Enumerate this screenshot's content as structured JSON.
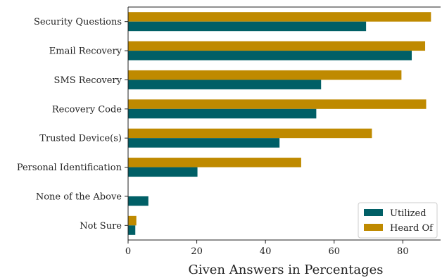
{
  "chart_data": {
    "type": "bar",
    "orientation": "horizontal",
    "categories": [
      "Security Questions",
      "Email Recovery",
      "SMS Recovery",
      "Recovery Code",
      "Trusted Device(s)",
      "Personal Identification",
      "None of the Above",
      "Not Sure"
    ],
    "series": [
      {
        "name": "Heard Of",
        "color": "#bf8a00",
        "values": [
          88.2,
          86.5,
          79.6,
          86.8,
          71.0,
          50.4,
          0,
          2.4
        ]
      },
      {
        "name": "Utilized",
        "color": "#005f66",
        "values": [
          69.3,
          82.6,
          56.2,
          54.8,
          44.1,
          20.2,
          5.9,
          2.1
        ]
      }
    ],
    "legend_order": [
      "Utilized",
      "Heard Of"
    ],
    "legend_position": "bottom-right",
    "xlabel": "Given Answers in Percentages",
    "ylabel": "",
    "xlim": [
      0,
      91
    ],
    "xticks": [
      0,
      20,
      40,
      60,
      80
    ],
    "grid": false
  }
}
